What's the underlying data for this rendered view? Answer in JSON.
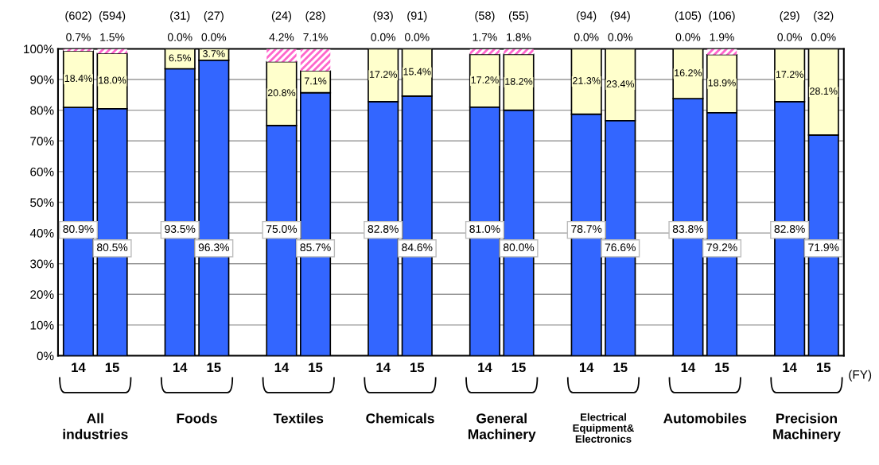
{
  "chart_data": {
    "type": "bar",
    "stacked": true,
    "categories": [
      "14",
      "15",
      null,
      "14",
      "15",
      null,
      "14",
      "15",
      null,
      "14",
      "15",
      null,
      "14",
      "15",
      null,
      "14",
      "15",
      null,
      "14",
      "15",
      null,
      "14",
      "15"
    ],
    "series": [
      {
        "color": "#3366ff",
        "values": [
          80.9,
          80.5,
          null,
          93.5,
          96.3,
          null,
          75.0,
          85.7,
          null,
          82.8,
          84.6,
          null,
          81.0,
          80.0,
          null,
          78.7,
          76.6,
          null,
          83.8,
          79.2,
          null,
          82.8,
          71.9
        ],
        "value_labels": [
          "80.9%",
          "80.5%",
          null,
          "93.5%",
          "96.3%",
          null,
          "75.0%",
          "85.7%",
          null,
          "82.8%",
          "84.6%",
          null,
          "81.0%",
          "80.0%",
          null,
          "78.7%",
          "76.6%",
          null,
          "83.8%",
          "79.2%",
          null,
          "82.8%",
          "71.9%"
        ]
      },
      {
        "color": "#ffffcc",
        "values": [
          18.4,
          18.0,
          null,
          6.5,
          3.7,
          null,
          20.8,
          7.1,
          null,
          17.2,
          15.4,
          null,
          17.2,
          18.2,
          null,
          21.3,
          23.4,
          null,
          16.2,
          18.9,
          null,
          17.2,
          28.1
        ],
        "value_labels": [
          "18.4%",
          "18.0%",
          null,
          "6.5%",
          "3.7%",
          null,
          "20.8%",
          "7.1%",
          null,
          "17.2%",
          "15.4%",
          null,
          "17.2%",
          "18.2%",
          null,
          "21.3%",
          "23.4%",
          null,
          "16.2%",
          "18.9%",
          null,
          "17.2%",
          "28.1%"
        ]
      },
      {
        "color": "#ff66cc",
        "values": [
          0.7,
          1.5,
          null,
          0.0,
          0.0,
          null,
          4.2,
          7.1,
          null,
          0.0,
          0.0,
          null,
          1.7,
          1.8,
          null,
          0.0,
          0.0,
          null,
          0.0,
          1.9,
          null,
          0.0,
          0.0
        ],
        "value_labels": [
          "0.7%",
          "1.5%",
          null,
          "0.0%",
          "0.0%",
          null,
          "4.2%",
          "7.1%",
          null,
          "0.0%",
          "0.0%",
          null,
          "1.7%",
          "1.8%",
          null,
          "0.0%",
          "0.0%",
          null,
          "0.0%",
          "1.9%",
          null,
          "0.0%",
          "0.0%"
        ]
      }
    ],
    "ylim": [
      0,
      100
    ],
    "yticks": [
      {
        "value": 0,
        "label": "0%"
      },
      {
        "value": 10,
        "label": "10%"
      },
      {
        "value": 20,
        "label": "20%"
      },
      {
        "value": 30,
        "label": "30%"
      },
      {
        "value": 40,
        "label": "40%"
      },
      {
        "value": 50,
        "label": "50%"
      },
      {
        "value": 60,
        "label": "60%"
      },
      {
        "value": 70,
        "label": "70%"
      },
      {
        "value": 80,
        "label": "80%"
      },
      {
        "value": 90,
        "label": "90%"
      },
      {
        "value": 100,
        "label": "100%"
      }
    ],
    "grid": "y",
    "annotations": [
      "(602)",
      "(594)",
      "(31)",
      "(27)",
      "(24)",
      "(28)",
      "(93)",
      "(91)",
      "(58)",
      "(55)",
      "(94)",
      "(94)",
      "(105)",
      "(106)",
      "(29)",
      "(32)",
      "All\nindustries",
      "Foods",
      "Textiles",
      "Chemicals",
      "General\nMachinery",
      "Electrical\nEquipment&\nElectronics",
      "Automobiles",
      "Precision\nMachinery",
      "(FY)"
    ]
  }
}
